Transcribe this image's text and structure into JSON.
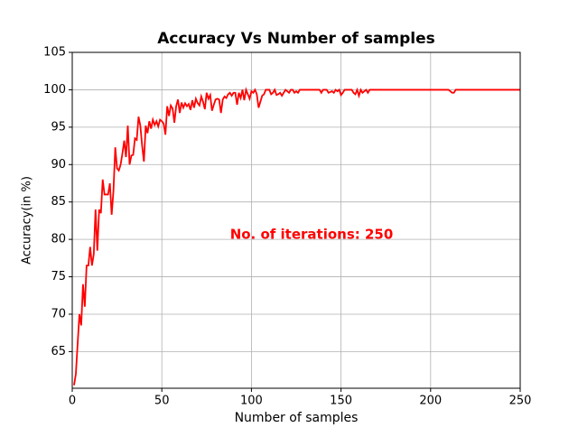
{
  "chart_data": {
    "type": "line",
    "title": "Accuracy Vs Number of samples",
    "xlabel": "Number of samples",
    "ylabel": "Accuracy(in %)",
    "annotation": "No. of iterations: 250",
    "annotation_color": "#ff0000",
    "xlim": [
      0,
      250
    ],
    "xticks": [
      0,
      50,
      100,
      150,
      200,
      250
    ],
    "ylim": [
      60.1,
      105
    ],
    "yticks": [
      65,
      70,
      75,
      80,
      85,
      90,
      95,
      100,
      105
    ],
    "grid": true,
    "x": [
      1,
      2,
      3,
      4,
      5,
      6,
      7,
      8,
      9,
      10,
      11,
      12,
      13,
      14,
      15,
      16,
      17,
      18,
      19,
      20,
      21,
      22,
      23,
      24,
      25,
      26,
      27,
      28,
      29,
      30,
      31,
      32,
      33,
      34,
      35,
      36,
      37,
      38,
      39,
      40,
      41,
      42,
      43,
      44,
      45,
      46,
      47,
      48,
      49,
      50,
      51,
      52,
      53,
      54,
      55,
      56,
      57,
      58,
      59,
      60,
      61,
      62,
      63,
      64,
      65,
      66,
      67,
      68,
      69,
      70,
      71,
      72,
      73,
      74,
      75,
      76,
      77,
      78,
      79,
      80,
      81,
      82,
      83,
      84,
      85,
      86,
      87,
      88,
      89,
      90,
      91,
      92,
      93,
      94,
      95,
      96,
      97,
      98,
      99,
      100,
      101,
      102,
      103,
      104,
      105,
      106,
      107,
      108,
      109,
      110,
      111,
      112,
      113,
      114,
      115,
      116,
      117,
      118,
      119,
      120,
      121,
      122,
      123,
      124,
      125,
      126,
      127,
      128,
      129,
      130,
      131,
      132,
      133,
      134,
      135,
      136,
      137,
      138,
      139,
      140,
      141,
      142,
      143,
      144,
      145,
      146,
      147,
      148,
      149,
      150,
      151,
      152,
      153,
      154,
      155,
      156,
      157,
      158,
      159,
      160,
      161,
      162,
      163,
      164,
      165,
      166,
      167,
      168,
      169,
      170,
      171,
      172,
      173,
      174,
      175,
      176,
      177,
      178,
      179,
      180,
      181,
      182,
      183,
      184,
      185,
      186,
      187,
      188,
      189,
      190,
      191,
      192,
      193,
      194,
      195,
      196,
      197,
      198,
      199,
      200,
      201,
      202,
      203,
      204,
      205,
      206,
      207,
      208,
      209,
      210,
      211,
      212,
      213,
      214,
      215,
      216,
      217,
      218,
      219,
      220,
      221,
      222,
      223,
      224,
      225,
      226,
      227,
      228,
      229,
      230,
      231,
      232,
      233,
      234,
      235,
      236,
      237,
      238,
      239,
      240,
      241,
      242,
      243,
      244,
      245,
      246,
      247,
      248,
      249,
      250
    ],
    "series": [
      {
        "name": "Accuracy",
        "color": "#ff0000",
        "values": [
          60.5,
          62,
          66,
          70,
          68.5,
          74,
          71,
          76.5,
          76.5,
          79,
          76.5,
          78,
          84,
          78.5,
          84,
          83.5,
          88,
          86,
          86,
          86,
          87.5,
          83.3,
          86.5,
          92.3,
          89.5,
          89.2,
          90,
          91.5,
          93.2,
          91,
          95.2,
          90,
          91.2,
          91.3,
          93.5,
          93.3,
          96.4,
          95.2,
          92.5,
          90.4,
          95.2,
          94.2,
          95.8,
          94.8,
          96,
          95.3,
          95.8,
          95.1,
          96,
          95.8,
          95.5,
          94,
          97.8,
          96.5,
          97.9,
          97.5,
          95.6,
          97.8,
          98.7,
          96.9,
          98.3,
          97.6,
          98.2,
          97.8,
          98.1,
          97.3,
          98.6,
          97.6,
          98.8,
          98.2,
          97.9,
          99.1,
          98.4,
          97.4,
          99.6,
          98.8,
          99.3,
          97.2,
          98,
          98.7,
          98.8,
          98.7,
          96.9,
          98.7,
          99.1,
          98.9,
          99.4,
          99.6,
          99.2,
          99.6,
          99.6,
          98,
          99.6,
          98.9,
          100,
          98.6,
          100,
          99.4,
          98.8,
          99.8,
          99.6,
          100,
          99.4,
          97.6,
          98.4,
          99.2,
          99.4,
          100,
          100,
          100,
          99.4,
          99.6,
          100,
          99.3,
          99.4,
          99.6,
          99.2,
          99.6,
          100,
          99.8,
          99.6,
          100,
          100,
          99.6,
          99.8,
          99.6,
          100,
          100,
          100,
          100,
          100,
          100,
          100,
          100,
          100,
          100,
          100,
          100,
          99.6,
          100,
          100,
          100,
          99.6,
          99.7,
          99.8,
          99.6,
          100,
          99.8,
          100,
          99.3,
          99.6,
          100,
          100,
          100,
          100,
          100,
          99.6,
          99.4,
          100,
          99.2,
          100,
          99.6,
          99.8,
          100,
          99.6,
          100,
          100,
          100,
          100,
          100,
          100,
          100,
          100,
          100,
          100,
          100,
          100,
          100,
          100,
          100,
          100,
          100,
          100,
          100,
          100,
          100,
          100,
          100,
          100,
          100,
          100,
          100,
          100,
          100,
          100,
          100,
          100,
          100,
          100,
          100,
          100,
          100,
          100,
          100,
          100,
          100,
          100,
          100,
          100,
          100,
          99.8,
          99.6,
          99.6,
          100,
          100,
          100,
          100,
          100,
          100,
          100,
          100,
          100,
          100,
          100,
          100,
          100,
          100,
          100,
          100,
          100,
          100,
          100,
          100,
          100,
          100,
          100,
          100,
          100,
          100,
          100,
          100,
          100,
          100,
          100,
          100,
          100,
          100,
          100,
          100,
          100
        ]
      }
    ]
  }
}
